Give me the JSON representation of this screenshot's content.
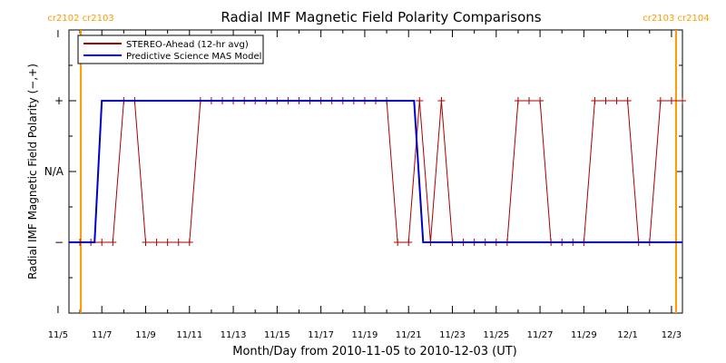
{
  "chart_data": {
    "type": "line",
    "title": "Radial IMF Magnetic Field Polarity Comparisons",
    "xlabel": "Month/Day from 2010-11-05 to 2010-12-03 (UT)",
    "ylabel": "Radial IMF Magnetic Field Polarity (−,+)",
    "x_unit": "days",
    "xlim": [
      "2010-11-05T12:00",
      "2010-12-03T12:00"
    ],
    "ylim": [
      -2,
      2
    ],
    "x_ticks": [
      {
        "x": "2010-11-05",
        "label": "11/5"
      },
      {
        "x": "2010-11-07",
        "label": "11/7"
      },
      {
        "x": "2010-11-09",
        "label": "11/9"
      },
      {
        "x": "2010-11-11",
        "label": "11/11"
      },
      {
        "x": "2010-11-13",
        "label": "11/13"
      },
      {
        "x": "2010-11-15",
        "label": "11/15"
      },
      {
        "x": "2010-11-17",
        "label": "11/17"
      },
      {
        "x": "2010-11-19",
        "label": "11/19"
      },
      {
        "x": "2010-11-21",
        "label": "11/21"
      },
      {
        "x": "2010-11-23",
        "label": "11/23"
      },
      {
        "x": "2010-11-25",
        "label": "11/25"
      },
      {
        "x": "2010-11-27",
        "label": "11/27"
      },
      {
        "x": "2010-11-29",
        "label": "11/29"
      },
      {
        "x": "2010-12-01",
        "label": "12/1"
      },
      {
        "x": "2010-12-03",
        "label": "12/3"
      }
    ],
    "y_ticks": [
      {
        "y": 1,
        "label": "+"
      },
      {
        "y": 0,
        "label": "N/A"
      },
      {
        "y": -1,
        "label": "−"
      }
    ],
    "legend": {
      "placement": "top-left"
    },
    "carrington_markers": [
      {
        "x": "2010-11-06T01:00",
        "label": "cr2102 cr2103",
        "color": "#ff9900"
      },
      {
        "x": "2010-12-03T05:00",
        "label": "cr2103 cr2104",
        "color": "#ff9900"
      }
    ],
    "series": [
      {
        "name": "STEREO-Ahead (12-hr avg)",
        "color": "#aa0000",
        "marker": "plus",
        "points": [
          {
            "x": "2010-11-06T00:00",
            "y": -1
          },
          {
            "x": "2010-11-06T12:00",
            "y": -1
          },
          {
            "x": "2010-11-07T00:00",
            "y": -1
          },
          {
            "x": "2010-11-07T12:00",
            "y": -1
          },
          {
            "x": "2010-11-08T00:00",
            "y": 1
          },
          {
            "x": "2010-11-08T12:00",
            "y": 1
          },
          {
            "x": "2010-11-09T00:00",
            "y": -1
          },
          {
            "x": "2010-11-09T12:00",
            "y": -1
          },
          {
            "x": "2010-11-10T00:00",
            "y": -1
          },
          {
            "x": "2010-11-10T12:00",
            "y": -1
          },
          {
            "x": "2010-11-11T00:00",
            "y": -1
          },
          {
            "x": "2010-11-11T12:00",
            "y": 1
          },
          {
            "x": "2010-11-12T00:00",
            "y": 1
          },
          {
            "x": "2010-11-12T12:00",
            "y": 1
          },
          {
            "x": "2010-11-13T00:00",
            "y": 1
          },
          {
            "x": "2010-11-13T12:00",
            "y": 1
          },
          {
            "x": "2010-11-14T00:00",
            "y": 1
          },
          {
            "x": "2010-11-14T12:00",
            "y": 1
          },
          {
            "x": "2010-11-15T00:00",
            "y": 1
          },
          {
            "x": "2010-11-15T12:00",
            "y": 1
          },
          {
            "x": "2010-11-16T00:00",
            "y": 1
          },
          {
            "x": "2010-11-16T12:00",
            "y": 1
          },
          {
            "x": "2010-11-17T00:00",
            "y": 1
          },
          {
            "x": "2010-11-17T12:00",
            "y": 1
          },
          {
            "x": "2010-11-18T00:00",
            "y": 1
          },
          {
            "x": "2010-11-18T12:00",
            "y": 1
          },
          {
            "x": "2010-11-19T00:00",
            "y": 1
          },
          {
            "x": "2010-11-19T12:00",
            "y": 1
          },
          {
            "x": "2010-11-20T00:00",
            "y": 1
          },
          {
            "x": "2010-11-20T12:00",
            "y": -1
          },
          {
            "x": "2010-11-21T00:00",
            "y": -1
          },
          {
            "x": "2010-11-21T12:00",
            "y": 1
          },
          {
            "x": "2010-11-22T00:00",
            "y": -1
          },
          {
            "x": "2010-11-22T12:00",
            "y": 1
          },
          {
            "x": "2010-11-23T00:00",
            "y": -1
          },
          {
            "x": "2010-11-23T12:00",
            "y": -1
          },
          {
            "x": "2010-11-24T00:00",
            "y": -1
          },
          {
            "x": "2010-11-24T12:00",
            "y": -1
          },
          {
            "x": "2010-11-25T00:00",
            "y": -1
          },
          {
            "x": "2010-11-25T12:00",
            "y": -1
          },
          {
            "x": "2010-11-26T00:00",
            "y": 1
          },
          {
            "x": "2010-11-26T12:00",
            "y": 1
          },
          {
            "x": "2010-11-27T00:00",
            "y": 1
          },
          {
            "x": "2010-11-27T12:00",
            "y": -1
          },
          {
            "x": "2010-11-28T00:00",
            "y": -1
          },
          {
            "x": "2010-11-28T12:00",
            "y": -1
          },
          {
            "x": "2010-11-29T00:00",
            "y": -1
          },
          {
            "x": "2010-11-29T12:00",
            "y": 1
          },
          {
            "x": "2010-11-30T00:00",
            "y": 1
          },
          {
            "x": "2010-11-30T12:00",
            "y": 1
          },
          {
            "x": "2010-12-01T00:00",
            "y": 1
          },
          {
            "x": "2010-12-01T12:00",
            "y": -1
          },
          {
            "x": "2010-12-02T00:00",
            "y": -1
          },
          {
            "x": "2010-12-02T12:00",
            "y": 1
          },
          {
            "x": "2010-12-03T00:00",
            "y": 1
          },
          {
            "x": "2010-12-03T12:00",
            "y": 1
          }
        ]
      },
      {
        "name": "Predictive Science MAS Model",
        "color": "#0000cc",
        "points": [
          {
            "x": "2010-11-05T12:00",
            "y": -1
          },
          {
            "x": "2010-11-06T16:00",
            "y": -1
          },
          {
            "x": "2010-11-07T00:00",
            "y": 1
          },
          {
            "x": "2010-11-21T06:00",
            "y": 1
          },
          {
            "x": "2010-11-21T16:00",
            "y": -1
          },
          {
            "x": "2010-12-03T12:00",
            "y": -1
          }
        ]
      }
    ]
  }
}
